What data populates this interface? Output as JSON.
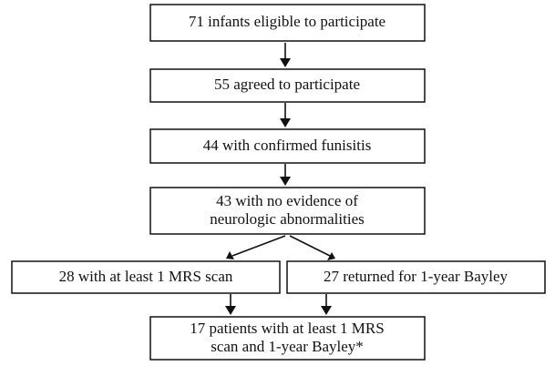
{
  "nodes": [
    {
      "lines": [
        "71 infants eligible to participate"
      ]
    },
    {
      "lines": [
        "55 agreed to participate"
      ]
    },
    {
      "lines": [
        "44 with confirmed funisitis"
      ]
    },
    {
      "lines": [
        "43 with no evidence of",
        "neurologic abnormalities"
      ]
    },
    {
      "lines": [
        "28 with at least 1 MRS scan"
      ]
    },
    {
      "lines": [
        "27 returned for 1-year Bayley"
      ]
    },
    {
      "lines": [
        "17 patients with at least 1 MRS",
        "scan and 1-year Bayley*"
      ]
    }
  ]
}
